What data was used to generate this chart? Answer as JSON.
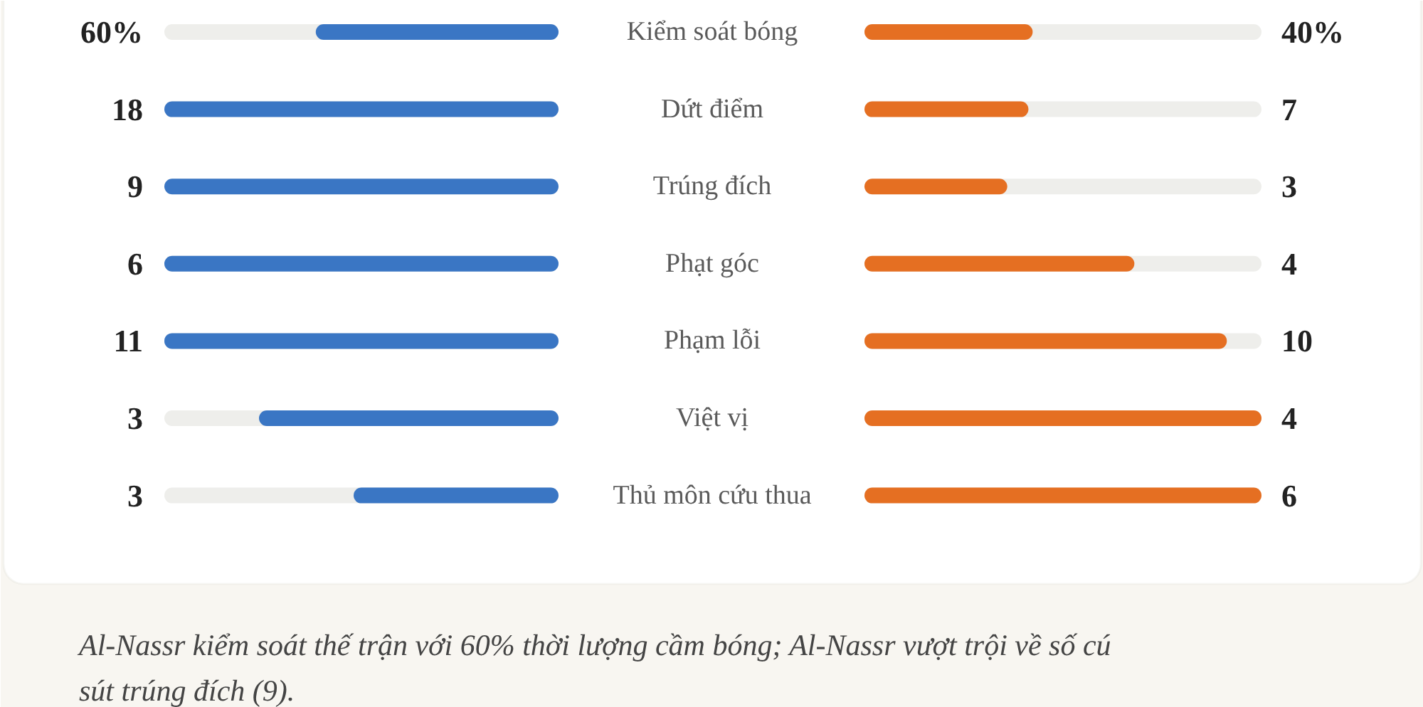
{
  "chart_data": {
    "type": "other",
    "categories": [
      "Kiểm soát bóng",
      "Dứt điểm",
      "Trúng đích",
      "Phạt góc",
      "Phạm lỗi",
      "Việt vị",
      "Thủ môn cứu thua"
    ],
    "series": [
      {
        "color": "#3a76c4",
        "values": [
          60,
          18,
          9,
          6,
          11,
          3,
          3
        ],
        "value_labels": [
          "60%",
          "18",
          "9",
          "6",
          "11",
          "3",
          "3"
        ]
      },
      {
        "color": "#e56f22",
        "values": [
          40,
          7,
          3,
          4,
          10,
          4,
          6
        ],
        "value_labels": [
          "40%",
          "7",
          "3",
          "4",
          "10",
          "4",
          "6"
        ]
      }
    ],
    "annotations": [
      "Al-Nassr kiểm soát thế trận với 60% thời lượng cầm bóng; Al-Nassr vượt trội về số cú sút trúng đích (9)."
    ]
  }
}
